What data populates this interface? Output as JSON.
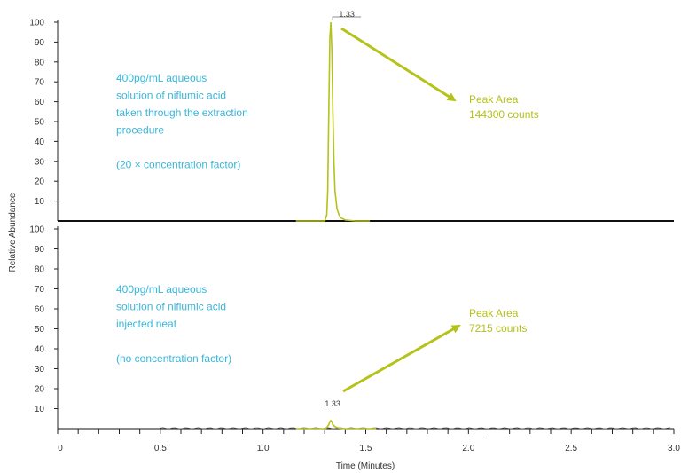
{
  "colors": {
    "trace": "#b5c21a",
    "annotation_text": "#38b6d9",
    "peak_area_text": "#b5c21a",
    "axis": "#222222",
    "baseline": "#111111"
  },
  "chart_data": [
    {
      "type": "line",
      "panel": "top",
      "xlabel": "Time (Minutes)",
      "ylabel": "Relative Abundance",
      "xlim": [
        0,
        3.0
      ],
      "ylim": [
        0,
        100
      ],
      "y_ticks": [
        "10",
        "20",
        "30",
        "40",
        "50",
        "60",
        "70",
        "80",
        "90",
        "100"
      ],
      "series": [
        {
          "x": [
            1.16,
            1.3,
            1.31,
            1.315,
            1.32,
            1.325,
            1.33,
            1.335,
            1.34,
            1.345,
            1.35,
            1.36,
            1.37,
            1.38,
            1.4,
            1.45,
            1.52
          ],
          "values": [
            0,
            0,
            3,
            15,
            55,
            92,
            100,
            85,
            55,
            30,
            15,
            6,
            3,
            1.5,
            0.5,
            0,
            0
          ]
        }
      ],
      "peak_label": "1.33",
      "peak_x": 1.33,
      "annotation": {
        "lines": [
          "400pg/mL aqueous",
          "solution of niflumic acid",
          "taken through the extraction",
          "procedure",
          "",
          "(20 × concentration factor)"
        ]
      },
      "peak_area": {
        "lines": [
          "Peak Area",
          "144300 counts"
        ]
      }
    },
    {
      "type": "line",
      "panel": "bottom",
      "xlabel": "Time (Minutes)",
      "ylabel": "Relative Abundance",
      "xlim": [
        0,
        3.0
      ],
      "ylim": [
        0,
        100
      ],
      "y_ticks": [
        "10",
        "20",
        "30",
        "40",
        "50",
        "60",
        "70",
        "80",
        "90",
        "100"
      ],
      "series": [
        {
          "x": [
            1.16,
            1.3,
            1.31,
            1.32,
            1.325,
            1.33,
            1.335,
            1.34,
            1.35,
            1.36,
            1.4,
            1.55
          ],
          "values": [
            0,
            0,
            0.5,
            2,
            3.5,
            4,
            3.5,
            2,
            1,
            0.5,
            0,
            0
          ]
        }
      ],
      "peak_label": "1.33",
      "peak_x": 1.33,
      "annotation": {
        "lines": [
          "400pg/mL aqueous",
          "solution of niflumic acid",
          "injected neat",
          "",
          "(no concentration factor)"
        ]
      },
      "peak_area": {
        "lines": [
          "Peak Area",
          "7215 counts"
        ]
      }
    }
  ],
  "x_axis": {
    "title": "Time (Minutes)",
    "ticks": [
      {
        "value": 0,
        "label": "0"
      },
      {
        "value": 0.5,
        "label": "0.5"
      },
      {
        "value": 1.0,
        "label": "1.0"
      },
      {
        "value": 1.5,
        "label": "1.5"
      },
      {
        "value": 2.0,
        "label": "2.0"
      },
      {
        "value": 2.5,
        "label": "2.5"
      },
      {
        "value": 3.0,
        "label": "3.0"
      }
    ]
  },
  "y_axis_title": "Relative Abundance"
}
